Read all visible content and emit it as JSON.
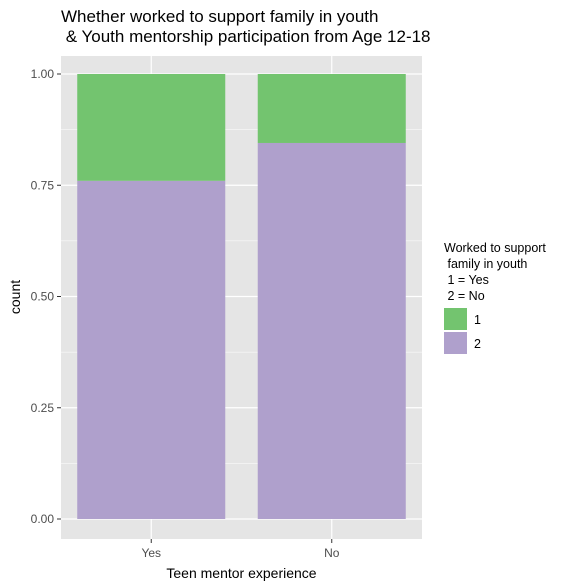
{
  "chart_data": {
    "type": "bar",
    "stacked": true,
    "title": [
      "Whether worked to support family in youth",
      " & Youth mentorship participation from Age 12-18"
    ],
    "xlabel": "Teen mentor experience",
    "ylabel": "count",
    "categories": [
      "Yes",
      "No"
    ],
    "series": [
      {
        "name": "1",
        "values": [
          0.24,
          0.155
        ],
        "color": "#73c46f"
      },
      {
        "name": "2",
        "values": [
          0.76,
          0.845
        ],
        "color": "#afa0cc"
      }
    ],
    "ylim": [
      0,
      1
    ],
    "yticks": [
      0,
      0.25,
      0.5,
      0.75,
      1
    ],
    "ytick_labels": [
      "0.00",
      "0.25",
      "0.50",
      "0.75",
      "1.00"
    ],
    "grid": true,
    "legend": {
      "placement": "right",
      "title": [
        "Worked to support",
        " family in youth",
        " 1 = Yes",
        " 2 = No"
      ]
    },
    "colors": {
      "panel": "#e5e5e5",
      "grid": "#ffffff"
    }
  }
}
